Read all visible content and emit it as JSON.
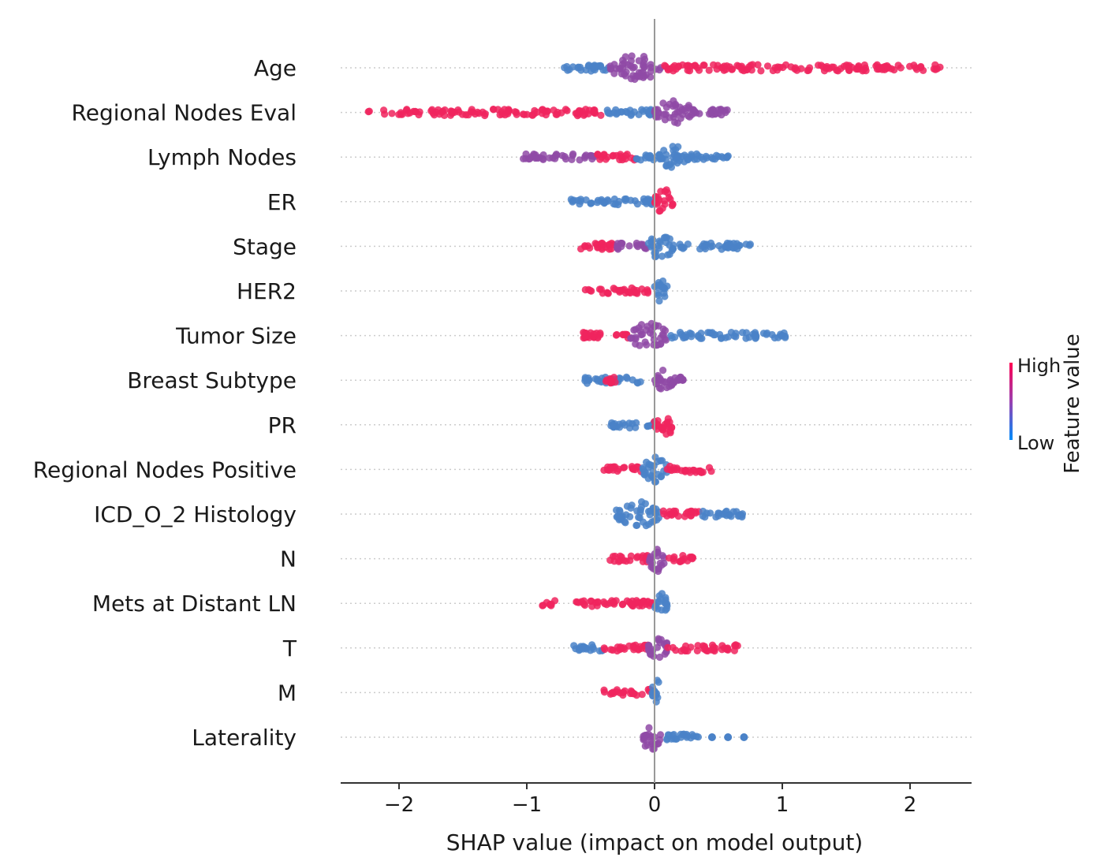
{
  "chart_data": {
    "type": "scatter",
    "subtype": "shap-beeswarm-summary",
    "title": "",
    "xlabel": "SHAP value (impact on model output)",
    "ylabel": "",
    "xlim": [
      -2.5,
      2.5
    ],
    "xticks": [
      -2,
      -1,
      0,
      1,
      2
    ],
    "xtick_labels": [
      "−2",
      "−1",
      "0",
      "1",
      "2"
    ],
    "grid": false,
    "features": [
      {
        "name": "Age",
        "min": -0.75,
        "max": 2.25,
        "segments": [
          {
            "from": -0.75,
            "to": -0.35,
            "color": "low"
          },
          {
            "from": -0.35,
            "to": 0.05,
            "color": "mid",
            "dense": true
          },
          {
            "from": 0.05,
            "to": 2.25,
            "color": "high"
          }
        ]
      },
      {
        "name": "Regional Nodes Eval",
        "min": -2.25,
        "max": 0.6,
        "segments": [
          {
            "from": -2.25,
            "to": -0.4,
            "color": "high"
          },
          {
            "from": -0.4,
            "to": 0.0,
            "color": "low"
          },
          {
            "from": 0.0,
            "to": 0.3,
            "color": "mid",
            "dense": true
          },
          {
            "from": 0.3,
            "to": 0.6,
            "color": "mid"
          }
        ]
      },
      {
        "name": "Lymph Nodes",
        "min": -1.05,
        "max": 0.6,
        "segments": [
          {
            "from": -1.05,
            "to": -0.45,
            "color": "mid"
          },
          {
            "from": -0.45,
            "to": -0.15,
            "color": "high"
          },
          {
            "from": -0.15,
            "to": 0.05,
            "color": "low"
          },
          {
            "from": 0.05,
            "to": 0.25,
            "color": "low",
            "dense": true
          },
          {
            "from": 0.25,
            "to": 0.6,
            "color": "low"
          }
        ]
      },
      {
        "name": "ER",
        "min": -0.7,
        "max": 0.15,
        "segments": [
          {
            "from": -0.7,
            "to": 0.0,
            "color": "low"
          },
          {
            "from": 0.0,
            "to": 0.15,
            "color": "high",
            "dense": true
          }
        ]
      },
      {
        "name": "Stage",
        "min": -0.6,
        "max": 0.75,
        "segments": [
          {
            "from": -0.6,
            "to": -0.3,
            "color": "high"
          },
          {
            "from": -0.3,
            "to": -0.05,
            "color": "mid"
          },
          {
            "from": -0.05,
            "to": 0.15,
            "color": "low",
            "dense": true
          },
          {
            "from": 0.15,
            "to": 0.75,
            "color": "low"
          }
        ]
      },
      {
        "name": "HER2",
        "min": -0.55,
        "max": 0.1,
        "segments": [
          {
            "from": -0.55,
            "to": -0.05,
            "color": "high"
          },
          {
            "from": 0.0,
            "to": 0.1,
            "color": "low",
            "dense": true
          }
        ]
      },
      {
        "name": "Tumor Size",
        "min": -0.6,
        "max": 1.05,
        "segments": [
          {
            "from": -0.6,
            "to": -0.2,
            "color": "high"
          },
          {
            "from": -0.2,
            "to": 0.1,
            "color": "mid",
            "dense": true
          },
          {
            "from": 0.1,
            "to": 1.05,
            "color": "low"
          }
        ]
      },
      {
        "name": "Breast Subtype",
        "min": -0.55,
        "max": 0.25,
        "segments": [
          {
            "from": -0.55,
            "to": -0.1,
            "color": "low"
          },
          {
            "from": -0.4,
            "to": -0.3,
            "color": "high"
          },
          {
            "from": 0.0,
            "to": 0.15,
            "color": "mid",
            "dense": true
          },
          {
            "from": 0.15,
            "to": 0.25,
            "color": "mid"
          }
        ]
      },
      {
        "name": "PR",
        "min": -0.35,
        "max": 0.15,
        "segments": [
          {
            "from": -0.35,
            "to": 0.0,
            "color": "low"
          },
          {
            "from": 0.0,
            "to": 0.15,
            "color": "high",
            "dense": true
          }
        ]
      },
      {
        "name": "Regional Nodes Positive",
        "min": -0.4,
        "max": 0.45,
        "segments": [
          {
            "from": -0.4,
            "to": -0.1,
            "color": "high"
          },
          {
            "from": -0.1,
            "to": 0.1,
            "color": "low",
            "dense": true
          },
          {
            "from": 0.1,
            "to": 0.45,
            "color": "high"
          }
        ]
      },
      {
        "name": "ICD_O_2 Histology",
        "min": -0.3,
        "max": 0.7,
        "segments": [
          {
            "from": -0.3,
            "to": 0.05,
            "color": "low",
            "dense": true
          },
          {
            "from": 0.05,
            "to": 0.35,
            "color": "high"
          },
          {
            "from": 0.35,
            "to": 0.7,
            "color": "low"
          }
        ]
      },
      {
        "name": "N",
        "min": -0.35,
        "max": 0.3,
        "segments": [
          {
            "from": -0.35,
            "to": -0.05,
            "color": "high"
          },
          {
            "from": -0.05,
            "to": 0.1,
            "color": "mid",
            "dense": true
          },
          {
            "from": 0.1,
            "to": 0.3,
            "color": "high"
          }
        ]
      },
      {
        "name": "Mets at Distant LN",
        "min": -0.9,
        "max": 0.1,
        "segments": [
          {
            "from": -0.9,
            "to": 0.0,
            "color": "high"
          },
          {
            "from": 0.0,
            "to": 0.1,
            "color": "low",
            "dense": true
          }
        ]
      },
      {
        "name": "T",
        "min": -0.65,
        "max": 0.65,
        "segments": [
          {
            "from": -0.65,
            "to": -0.4,
            "color": "low"
          },
          {
            "from": -0.4,
            "to": -0.05,
            "color": "high"
          },
          {
            "from": -0.05,
            "to": 0.1,
            "color": "mid",
            "dense": true
          },
          {
            "from": 0.1,
            "to": 0.65,
            "color": "high"
          }
        ]
      },
      {
        "name": "M",
        "min": -0.4,
        "max": 0.05,
        "segments": [
          {
            "from": -0.4,
            "to": -0.02,
            "color": "high"
          },
          {
            "from": -0.02,
            "to": 0.05,
            "color": "low",
            "dense": true
          }
        ]
      },
      {
        "name": "Laterality",
        "min": -0.1,
        "max": 0.7,
        "segments": [
          {
            "from": -0.1,
            "to": 0.05,
            "color": "mid",
            "dense": true
          },
          {
            "from": 0.05,
            "to": 0.35,
            "color": "low"
          },
          {
            "from": 0.45,
            "to": 0.7,
            "color": "low",
            "sparse": true
          }
        ]
      }
    ],
    "colorbar": {
      "title": "Feature value",
      "high_label": "High",
      "low_label": "Low",
      "high_color": "#ff0052",
      "low_color": "#008bfb"
    },
    "colors": {
      "high": "#f0245e",
      "low": "#4a82c8",
      "mid": "#8f4aa6",
      "axis": "#333333",
      "zero_line": "#999999",
      "row_guide": "#cccccc"
    }
  }
}
